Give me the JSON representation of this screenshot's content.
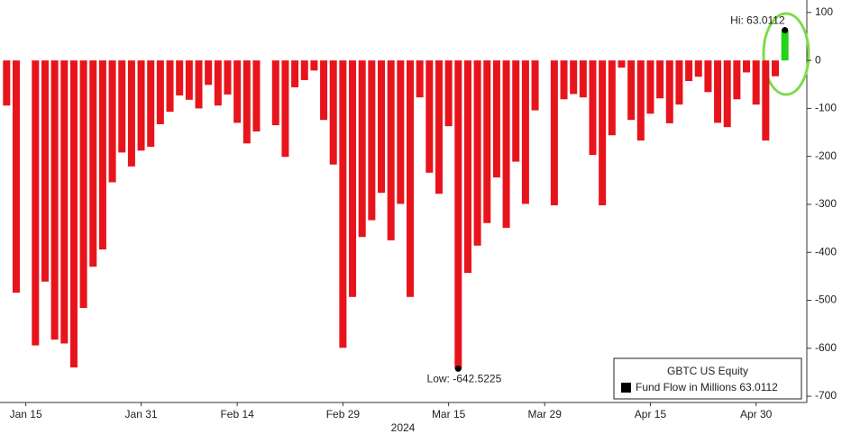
{
  "chart_data": {
    "type": "bar",
    "categories": [
      null,
      null,
      "Jan 15",
      null,
      null,
      null,
      null,
      null,
      null,
      null,
      null,
      null,
      null,
      null,
      "Jan 31",
      null,
      null,
      null,
      null,
      null,
      null,
      null,
      null,
      null,
      "Feb 14",
      null,
      null,
      null,
      null,
      null,
      null,
      null,
      null,
      null,
      null,
      "Feb 29",
      null,
      null,
      null,
      null,
      null,
      null,
      null,
      null,
      null,
      null,
      "Mar 15",
      null,
      null,
      null,
      null,
      null,
      null,
      null,
      null,
      null,
      "Mar 29",
      null,
      null,
      null,
      null,
      null,
      null,
      null,
      null,
      null,
      null,
      "Apr 15",
      null,
      null,
      null,
      null,
      null,
      null,
      null,
      null,
      null,
      null,
      "Apr 30",
      null,
      null,
      null
    ],
    "values": [
      -94,
      -484,
      null,
      -594,
      -461,
      -582,
      -590,
      -640,
      -516,
      -430,
      -394,
      -254,
      -192,
      -221,
      -188,
      -180,
      -133,
      -107,
      -73,
      -82,
      -100,
      -51,
      -94,
      -71,
      -130,
      -173,
      -148,
      null,
      -135,
      -201,
      -56,
      -41,
      -21,
      -124,
      -217,
      -599,
      -493,
      -368,
      -333,
      -276,
      -375,
      -299,
      -493,
      -77,
      -234,
      -278,
      -137,
      -642.5225,
      -443,
      -386,
      -339,
      -244,
      -349,
      -211,
      -299,
      -104,
      null,
      -302,
      -81,
      -70,
      -77,
      -197,
      -302,
      -156,
      -15,
      -124,
      -167,
      -111,
      -79,
      -131,
      -92,
      -43,
      -34,
      -66,
      -130,
      -139,
      -81,
      -25,
      -92,
      -167,
      -33,
      63.0112
    ],
    "color": "#e8141c",
    "last_color": "#22d318",
    "x_label": "2024",
    "ylim": [
      -713,
      126
    ],
    "yticks": [
      100,
      0,
      -100,
      -200,
      -300,
      -400,
      -500,
      -600,
      -700
    ],
    "annotations": [
      {
        "text": "Hi: 63.0112",
        "index": 81
      },
      {
        "text": "Low: -642.5225",
        "index": 47
      }
    ],
    "legend": {
      "title": "GBTC US Equity",
      "entry": "Fund Flow in Millions 63.0112"
    }
  }
}
